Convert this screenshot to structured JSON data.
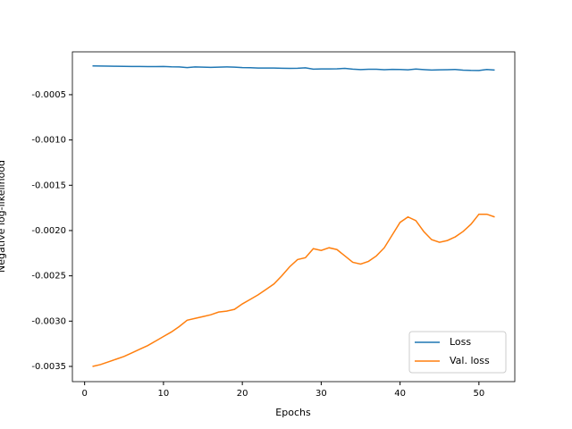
{
  "chart_data": {
    "type": "line",
    "xlabel": "Epochs",
    "ylabel": "Negative log-likelihood",
    "x": [
      1,
      2,
      3,
      4,
      5,
      6,
      7,
      8,
      9,
      10,
      11,
      12,
      13,
      14,
      15,
      16,
      17,
      18,
      19,
      20,
      21,
      22,
      23,
      24,
      25,
      26,
      27,
      28,
      29,
      30,
      31,
      32,
      33,
      34,
      35,
      36,
      37,
      38,
      39,
      40,
      41,
      42,
      43,
      44,
      45,
      46,
      47,
      48,
      49,
      50,
      51,
      52
    ],
    "series": [
      {
        "name": "Loss",
        "color": "#1f77b4",
        "values": [
          -0.000183,
          -0.000184,
          -0.000185,
          -0.000186,
          -0.000187,
          -0.000188,
          -0.000189,
          -0.00019,
          -0.00019,
          -0.000188,
          -0.000192,
          -0.000193,
          -0.000201,
          -0.000194,
          -0.000196,
          -0.000199,
          -0.000196,
          -0.000193,
          -0.000196,
          -0.000201,
          -0.000202,
          -0.000206,
          -0.000206,
          -0.000206,
          -0.000208,
          -0.00021,
          -0.000208,
          -0.000203,
          -0.000218,
          -0.000216,
          -0.000216,
          -0.000214,
          -0.00021,
          -0.000218,
          -0.000223,
          -0.000219,
          -0.00022,
          -0.000224,
          -0.000221,
          -0.000222,
          -0.000226,
          -0.000217,
          -0.000223,
          -0.000228,
          -0.000226,
          -0.000224,
          -0.000222,
          -0.000229,
          -0.000232,
          -0.000233,
          -0.000222,
          -0.000228
        ]
      },
      {
        "name": "Val. loss",
        "color": "#ff7f0e",
        "values": [
          -0.0035,
          -0.00348,
          -0.00345,
          -0.00342,
          -0.00339,
          -0.00335,
          -0.00331,
          -0.00327,
          -0.00322,
          -0.00317,
          -0.00312,
          -0.00306,
          -0.00299,
          -0.00297,
          -0.00295,
          -0.00293,
          -0.0029,
          -0.00289,
          -0.00287,
          -0.00281,
          -0.00276,
          -0.00271,
          -0.00265,
          -0.00259,
          -0.0025,
          -0.0024,
          -0.00232,
          -0.0023,
          -0.0022,
          -0.00222,
          -0.00219,
          -0.00221,
          -0.00228,
          -0.00235,
          -0.00237,
          -0.00234,
          -0.00228,
          -0.00219,
          -0.00205,
          -0.00191,
          -0.00185,
          -0.00189,
          -0.00201,
          -0.0021,
          -0.00213,
          -0.00211,
          -0.00207,
          -0.00201,
          -0.00193,
          -0.00182,
          -0.00182,
          -0.00185
        ]
      }
    ],
    "xlim": [
      -1.55,
      54.55
    ],
    "xticks": [
      0,
      10,
      20,
      30,
      40,
      50
    ],
    "ylim": [
      -0.003668,
      -2.7e-05
    ],
    "yticks": [
      -0.0035,
      {
        "value": -0.003,
        "label": "-0.0030"
      },
      -0.0025,
      {
        "value": -0.002,
        "label": "-0.0020"
      },
      -0.0015,
      {
        "value": -0.001,
        "label": "-0.0010"
      },
      -0.0005
    ],
    "grid": false,
    "legend": "lower right"
  }
}
